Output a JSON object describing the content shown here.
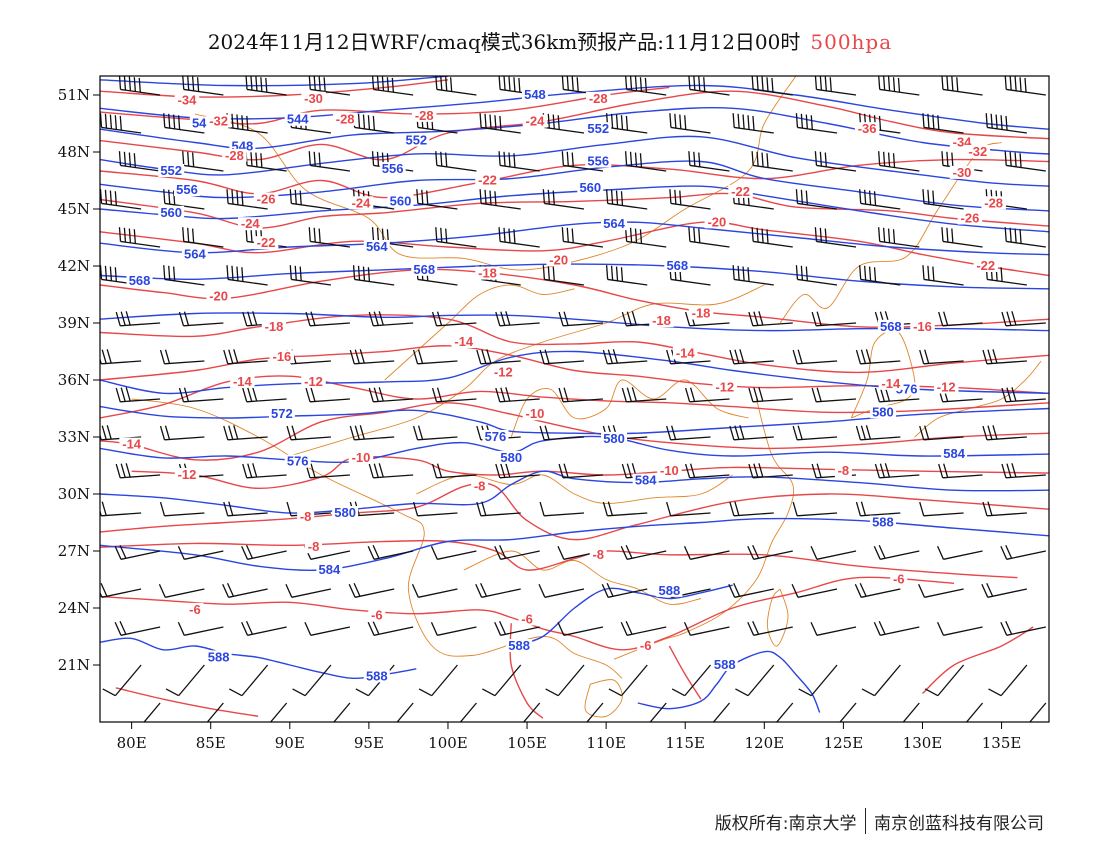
{
  "title": {
    "main": "2024年11月12日WRF/cmaq模式36km预报产品:11月12日00时",
    "level": "500hpa"
  },
  "footer": {
    "left": "版权所有:南京大学",
    "right": "南京创蓝科技有限公司"
  },
  "colors": {
    "height_contour": "#2a45e0",
    "temperature_contour": "#e8474a",
    "boundary": "#e0862a",
    "wind_barb": "#111111"
  },
  "axes": {
    "lon_range": [
      78,
      138
    ],
    "lat_range": [
      18,
      52
    ],
    "lon_ticks": [
      "80E",
      "85E",
      "90E",
      "95E",
      "100E",
      "105E",
      "110E",
      "115E",
      "120E",
      "125E",
      "130E",
      "135E"
    ],
    "lon_values": [
      80,
      85,
      90,
      95,
      100,
      105,
      110,
      115,
      120,
      125,
      130,
      135
    ],
    "lat_ticks": [
      "51N",
      "48N",
      "45N",
      "42N",
      "39N",
      "36N",
      "33N",
      "30N",
      "27N",
      "24N",
      "21N"
    ],
    "lat_values": [
      51,
      48,
      45,
      42,
      39,
      36,
      33,
      30,
      27,
      24,
      21
    ]
  },
  "height_labels": [
    {
      "text": "540",
      "lon": 84.5,
      "lat": 49.5
    },
    {
      "text": "544",
      "lon": 90.5,
      "lat": 49.7
    },
    {
      "text": "548",
      "lon": 87.0,
      "lat": 48.3
    },
    {
      "text": "548",
      "lon": 105.5,
      "lat": 51.0
    },
    {
      "text": "552",
      "lon": 82.5,
      "lat": 47.0
    },
    {
      "text": "552",
      "lon": 98.0,
      "lat": 48.6
    },
    {
      "text": "552",
      "lon": 109.5,
      "lat": 49.2
    },
    {
      "text": "556",
      "lon": 83.5,
      "lat": 46.0
    },
    {
      "text": "556",
      "lon": 96.5,
      "lat": 47.1
    },
    {
      "text": "556",
      "lon": 109.5,
      "lat": 47.5
    },
    {
      "text": "560",
      "lon": 82.5,
      "lat": 44.8
    },
    {
      "text": "560",
      "lon": 97.0,
      "lat": 45.4
    },
    {
      "text": "560",
      "lon": 109.0,
      "lat": 46.1
    },
    {
      "text": "564",
      "lon": 84.0,
      "lat": 42.6
    },
    {
      "text": "564",
      "lon": 95.5,
      "lat": 43.0
    },
    {
      "text": "564",
      "lon": 110.5,
      "lat": 44.2
    },
    {
      "text": "568",
      "lon": 80.5,
      "lat": 41.2
    },
    {
      "text": "568",
      "lon": 98.5,
      "lat": 41.8
    },
    {
      "text": "568",
      "lon": 114.5,
      "lat": 42.0
    },
    {
      "text": "568",
      "lon": 128.0,
      "lat": 38.8
    },
    {
      "text": "572",
      "lon": 89.5,
      "lat": 34.2
    },
    {
      "text": "576",
      "lon": 90.5,
      "lat": 31.7
    },
    {
      "text": "576",
      "lon": 103.0,
      "lat": 33.0
    },
    {
      "text": "576",
      "lon": 129.0,
      "lat": 35.5
    },
    {
      "text": "580",
      "lon": 93.5,
      "lat": 29.0
    },
    {
      "text": "580",
      "lon": 104.0,
      "lat": 31.9
    },
    {
      "text": "580",
      "lon": 110.5,
      "lat": 32.9
    },
    {
      "text": "580",
      "lon": 127.5,
      "lat": 34.3
    },
    {
      "text": "584",
      "lon": 92.5,
      "lat": 26.0
    },
    {
      "text": "584",
      "lon": 112.5,
      "lat": 30.7
    },
    {
      "text": "584",
      "lon": 132.0,
      "lat": 32.1
    },
    {
      "text": "588",
      "lon": 85.5,
      "lat": 21.4
    },
    {
      "text": "588",
      "lon": 95.5,
      "lat": 20.4
    },
    {
      "text": "588",
      "lon": 104.5,
      "lat": 22.0
    },
    {
      "text": "588",
      "lon": 114.0,
      "lat": 24.9
    },
    {
      "text": "588",
      "lon": 117.5,
      "lat": 21.0
    },
    {
      "text": "588",
      "lon": 127.5,
      "lat": 28.5
    }
  ],
  "temperature_labels": [
    {
      "text": "-34",
      "lon": 83.5,
      "lat": 50.7
    },
    {
      "text": "-32",
      "lon": 85.5,
      "lat": 49.6
    },
    {
      "text": "-30",
      "lon": 91.5,
      "lat": 50.8
    },
    {
      "text": "-28",
      "lon": 86.5,
      "lat": 47.8
    },
    {
      "text": "-28",
      "lon": 93.5,
      "lat": 49.7
    },
    {
      "text": "-28",
      "lon": 98.5,
      "lat": 49.9
    },
    {
      "text": "-28",
      "lon": 109.5,
      "lat": 50.8
    },
    {
      "text": "-26",
      "lon": 88.5,
      "lat": 45.5
    },
    {
      "text": "-24",
      "lon": 87.5,
      "lat": 44.2
    },
    {
      "text": "-24",
      "lon": 94.5,
      "lat": 45.3
    },
    {
      "text": "-24",
      "lon": 105.5,
      "lat": 49.6
    },
    {
      "text": "-22",
      "lon": 88.5,
      "lat": 43.2
    },
    {
      "text": "-22",
      "lon": 102.5,
      "lat": 46.5
    },
    {
      "text": "-22",
      "lon": 118.5,
      "lat": 45.9
    },
    {
      "text": "-20",
      "lon": 85.5,
      "lat": 40.4
    },
    {
      "text": "-20",
      "lon": 107.0,
      "lat": 42.3
    },
    {
      "text": "-20",
      "lon": 117.0,
      "lat": 44.3
    },
    {
      "text": "-18",
      "lon": 102.5,
      "lat": 41.6
    },
    {
      "text": "-18",
      "lon": 89.0,
      "lat": 38.8
    },
    {
      "text": "-18",
      "lon": 113.5,
      "lat": 39.1
    },
    {
      "text": "-18",
      "lon": 116.0,
      "lat": 39.5
    },
    {
      "text": "-16",
      "lon": 89.5,
      "lat": 37.2
    },
    {
      "text": "-16",
      "lon": 130.0,
      "lat": 38.8
    },
    {
      "text": "-14",
      "lon": 87.0,
      "lat": 35.9
    },
    {
      "text": "-14",
      "lon": 101.0,
      "lat": 38.0
    },
    {
      "text": "-14",
      "lon": 115.0,
      "lat": 37.4
    },
    {
      "text": "-14",
      "lon": 128.0,
      "lat": 35.8
    },
    {
      "text": "-14",
      "lon": 80.0,
      "lat": 32.6
    },
    {
      "text": "-12",
      "lon": 91.5,
      "lat": 35.9
    },
    {
      "text": "-12",
      "lon": 103.5,
      "lat": 36.4
    },
    {
      "text": "-12",
      "lon": 117.5,
      "lat": 35.6
    },
    {
      "text": "-12",
      "lon": 131.5,
      "lat": 35.6
    },
    {
      "text": "-12",
      "lon": 83.5,
      "lat": 31.0
    },
    {
      "text": "-10",
      "lon": 105.5,
      "lat": 34.2
    },
    {
      "text": "-10",
      "lon": 94.5,
      "lat": 31.9
    },
    {
      "text": "-10",
      "lon": 114.0,
      "lat": 31.2
    },
    {
      "text": "-8",
      "lon": 91.0,
      "lat": 28.8
    },
    {
      "text": "-8",
      "lon": 102.0,
      "lat": 30.4
    },
    {
      "text": "-8",
      "lon": 125.0,
      "lat": 31.2
    },
    {
      "text": "-8",
      "lon": 91.5,
      "lat": 27.2
    },
    {
      "text": "-8",
      "lon": 109.5,
      "lat": 26.8
    },
    {
      "text": "-6",
      "lon": 84.0,
      "lat": 23.9
    },
    {
      "text": "-6",
      "lon": 95.5,
      "lat": 23.6
    },
    {
      "text": "-6",
      "lon": 105.0,
      "lat": 23.4
    },
    {
      "text": "-6",
      "lon": 112.5,
      "lat": 22.0
    },
    {
      "text": "-6",
      "lon": 128.5,
      "lat": 25.5
    },
    {
      "text": "-34",
      "lon": 132.5,
      "lat": 48.5
    },
    {
      "text": "-32",
      "lon": 133.5,
      "lat": 48.0
    },
    {
      "text": "-30",
      "lon": 132.5,
      "lat": 46.9
    },
    {
      "text": "-36",
      "lon": 126.5,
      "lat": 49.2
    },
    {
      "text": "-28",
      "lon": 134.5,
      "lat": 45.3
    },
    {
      "text": "-26",
      "lon": 133.0,
      "lat": 44.5
    },
    {
      "text": "-22",
      "lon": 134.0,
      "lat": 42.0
    }
  ]
}
